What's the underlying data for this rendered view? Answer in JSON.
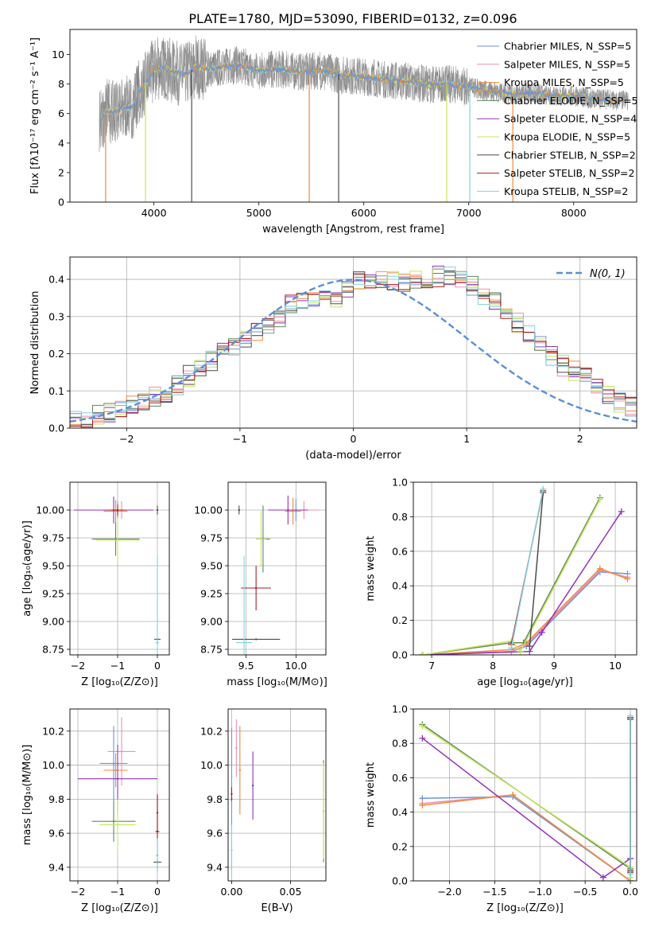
{
  "series_colors": [
    "#6b94d8",
    "#ef8fb3",
    "#ee8a3d",
    "#5e8a5e",
    "#9332b8",
    "#c7e65a",
    "#4d4d4d",
    "#a81e1e",
    "#83d3dc"
  ],
  "chart_data": [
    {
      "id": "spectrum",
      "type": "line",
      "title": "PLATE=1780, MJD=53090, FIBERID=0132, z=0.096",
      "xlabel": "wavelength [Angstrom, rest frame]",
      "ylabel": "Flux [fλ10⁻¹⁷ erg cm⁻² s⁻¹ A⁻¹]",
      "xlim": [
        3200,
        8600
      ],
      "ylim": [
        0,
        11.7
      ],
      "xticks": [
        4000,
        5000,
        6000,
        7000,
        8000
      ],
      "yticks": [
        0,
        2,
        4,
        6,
        8,
        10
      ],
      "grid": false,
      "legend_position": "top-right",
      "legend": [
        "Chabrier MILES, N_SSP=5",
        "Salpeter MILES, N_SSP=5",
        "Kroupa MILES, N_SSP=5",
        "Chabrier ELODIE, N_SSP=5",
        "Salpeter ELODIE, N_SSP=4",
        "Kroupa ELODIE, N_SSP=5",
        "Chabrier STELIB, N_SSP=2",
        "Salpeter STELIB, N_SSP=2",
        "Kroupa STELIB, N_SSP=2"
      ],
      "model_continuum": {
        "x": [
          3500,
          3550,
          3600,
          3700,
          3800,
          3850,
          3900,
          3950,
          4000,
          4100,
          4200,
          4300,
          4400,
          4500,
          4600,
          4800,
          5000,
          5200,
          5400,
          5600,
          5800,
          6000,
          6200,
          6400,
          6600,
          6800,
          7000,
          7200,
          7400,
          7600,
          7800,
          8000,
          8200,
          8400
        ],
        "y": [
          5.6,
          6.2,
          6.1,
          6.3,
          6.5,
          7.5,
          7.8,
          8.4,
          9.0,
          9.1,
          8.8,
          8.6,
          9.2,
          9.0,
          9.1,
          9.3,
          8.9,
          9.0,
          8.8,
          8.9,
          8.6,
          8.5,
          8.3,
          8.2,
          8.0,
          8.0,
          7.8,
          7.5,
          7.3,
          7.4,
          7.2,
          7.2,
          7.0,
          6.9
        ]
      }
    },
    {
      "id": "residuals",
      "type": "histogram",
      "xlabel": "(data-model)/error",
      "ylabel": "Normed distribution",
      "xlim": [
        -2.5,
        2.5
      ],
      "ylim": [
        0,
        0.46
      ],
      "xticks": [
        -2,
        -1,
        0,
        1,
        2
      ],
      "yticks": [
        0.0,
        0.1,
        0.2,
        0.3,
        0.4
      ],
      "grid": true,
      "legend_position": "top-right",
      "legend": [
        "N(0, 1)"
      ],
      "normal_reference": {
        "mean": 0,
        "sigma": 1
      },
      "bin_width": 0.1,
      "series": [
        {
          "values": [
            0.02,
            0.02,
            0.03,
            0.04,
            0.05,
            0.06,
            0.07,
            0.08,
            0.1,
            0.12,
            0.14,
            0.16,
            0.18,
            0.2,
            0.22,
            0.24,
            0.26,
            0.28,
            0.3,
            0.33,
            0.34,
            0.35,
            0.35,
            0.35,
            0.38,
            0.4,
            0.39,
            0.4,
            0.39,
            0.39,
            0.4,
            0.4,
            0.41,
            0.41,
            0.4,
            0.38,
            0.35,
            0.34,
            0.31,
            0.28,
            0.26,
            0.22,
            0.2,
            0.17,
            0.15,
            0.13,
            0.11,
            0.09,
            0.07,
            0.06
          ]
        }
      ]
    },
    {
      "id": "age_vs_Z",
      "type": "errorbar",
      "xlabel": "Z [log₁₀(Z/Z⊙)]",
      "ylabel": "age  [log₁₀(age/yr)]",
      "xlim": [
        -2.2,
        0.3
      ],
      "ylim": [
        8.7,
        10.25
      ],
      "xticks": [
        -2,
        -1,
        0
      ],
      "yticks": [
        8.75,
        9.0,
        9.25,
        9.5,
        9.75,
        10.0
      ],
      "grid": true,
      "points": [
        {
          "s": 0,
          "x": -1.0,
          "y": 10.0,
          "xerr": 0.3,
          "yerr": 0.08
        },
        {
          "s": 1,
          "x": -0.9,
          "y": 10.0,
          "xerr": 0.35,
          "yerr": 0.08
        },
        {
          "s": 2,
          "x": -1.05,
          "y": 9.99,
          "xerr": 0.3,
          "yerr": 0.1
        },
        {
          "s": 3,
          "x": -1.05,
          "y": 9.74,
          "xerr": 0.6,
          "yerr": 0.15
        },
        {
          "s": 4,
          "x": -1.1,
          "y": 10.0,
          "xerr": 1.0,
          "yerr": 0.12
        },
        {
          "s": 5,
          "x": -1.0,
          "y": 9.73,
          "xerr": 0.55,
          "yerr": 0.2
        },
        {
          "s": 6,
          "x": 0.0,
          "y": 8.84,
          "xerr": 0.08,
          "yerr": 0.0
        },
        {
          "s": 6,
          "x": 0.0,
          "y": 10.0,
          "xerr": 0.0,
          "yerr": 0.04
        },
        {
          "s": 7,
          "x": -1.0,
          "y": 10.0,
          "xerr": 0.2,
          "yerr": 0.05
        },
        {
          "s": 8,
          "x": 0.0,
          "y": 8.81,
          "xerr": 0.04,
          "yerr": 0.78
        }
      ]
    },
    {
      "id": "age_vs_mass",
      "type": "errorbar",
      "xlabel": "mass [log₁₀(M/M⊙)]",
      "ylabel": "",
      "xlim": [
        9.32,
        10.3
      ],
      "ylim": [
        8.7,
        10.25
      ],
      "xticks": [
        9.5,
        10.0
      ],
      "yticks": [
        8.75,
        9.0,
        9.25,
        9.5,
        9.75,
        10.0
      ],
      "grid": true,
      "points": [
        {
          "s": 0,
          "x": 10.0,
          "y": 10.0,
          "xerr": 0.1,
          "yerr": 0.1
        },
        {
          "s": 1,
          "x": 10.08,
          "y": 10.0,
          "xerr": 0.15,
          "yerr": 0.08
        },
        {
          "s": 2,
          "x": 9.97,
          "y": 9.99,
          "xerr": 0.08,
          "yerr": 0.12
        },
        {
          "s": 3,
          "x": 9.67,
          "y": 9.74,
          "xerr": 0.07,
          "yerr": 0.3
        },
        {
          "s": 4,
          "x": 9.92,
          "y": 10.0,
          "xerr": 0.2,
          "yerr": 0.13
        },
        {
          "s": 5,
          "x": 9.65,
          "y": 9.74,
          "xerr": 0.05,
          "yerr": 0.25
        },
        {
          "s": 6,
          "x": 9.43,
          "y": 10.0,
          "xerr": 0.0,
          "yerr": 0.04
        },
        {
          "s": 6,
          "x": 9.6,
          "y": 8.84,
          "xerr": 0.24,
          "yerr": 0.0
        },
        {
          "s": 7,
          "x": 9.6,
          "y": 9.3,
          "xerr": 0.15,
          "yerr": 0.2
        },
        {
          "s": 8,
          "x": 9.48,
          "y": 8.81,
          "xerr": 0.08,
          "yerr": 0.78
        }
      ]
    },
    {
      "id": "weight_vs_age",
      "type": "line",
      "xlabel": "age  [log₁₀(age/yr)]",
      "ylabel": "mass weight",
      "xlim": [
        6.7,
        10.35
      ],
      "ylim": [
        0,
        1.0
      ],
      "xticks": [
        7,
        8,
        9,
        10
      ],
      "yticks": [
        0.0,
        0.2,
        0.4,
        0.6,
        0.8,
        1.0
      ],
      "grid": true,
      "series": [
        {
          "s": 0,
          "x": [
            6.85,
            8.3,
            8.55,
            9.75,
            10.2
          ],
          "y": [
            0.0,
            0.02,
            0.05,
            0.48,
            0.47
          ]
        },
        {
          "s": 1,
          "x": [
            6.85,
            8.3,
            8.55,
            9.75,
            10.2
          ],
          "y": [
            0.0,
            0.02,
            0.06,
            0.49,
            0.45
          ]
        },
        {
          "s": 2,
          "x": [
            6.85,
            8.3,
            8.55,
            9.75,
            10.2
          ],
          "y": [
            0.0,
            0.03,
            0.07,
            0.5,
            0.44
          ]
        },
        {
          "s": 3,
          "x": [
            6.85,
            8.3,
            8.5,
            9.75
          ],
          "y": [
            0.0,
            0.07,
            0.07,
            0.91
          ]
        },
        {
          "s": 4,
          "x": [
            6.85,
            8.6,
            8.8,
            10.1
          ],
          "y": [
            0.0,
            0.02,
            0.13,
            0.83
          ]
        },
        {
          "s": 5,
          "x": [
            6.85,
            8.3,
            8.45,
            9.75
          ],
          "y": [
            0.0,
            0.08,
            0.02,
            0.9
          ]
        },
        {
          "s": 6,
          "x": [
            8.6,
            8.82
          ],
          "y": [
            0.05,
            0.94
          ]
        },
        {
          "s": 7,
          "x": [
            8.3,
            8.82
          ],
          "y": [
            0.06,
            0.95
          ]
        },
        {
          "s": 8,
          "x": [
            8.3,
            8.82
          ],
          "y": [
            0.04,
            0.96
          ]
        }
      ]
    },
    {
      "id": "mass_vs_Z",
      "type": "errorbar",
      "xlabel": "Z [log₁₀(Z/Z⊙)]",
      "ylabel": "mass [log₁₀(M/M⊙)]",
      "xlim": [
        -2.2,
        0.3
      ],
      "ylim": [
        9.32,
        10.33
      ],
      "xticks": [
        -2,
        -1,
        0
      ],
      "yticks": [
        9.4,
        9.6,
        9.8,
        10.0,
        10.2
      ],
      "grid": true,
      "points": [
        {
          "s": 0,
          "x": -1.1,
          "y": 10.01,
          "xerr": 0.35,
          "yerr": 0.22
        },
        {
          "s": 1,
          "x": -0.9,
          "y": 10.08,
          "xerr": 0.35,
          "yerr": 0.2
        },
        {
          "s": 2,
          "x": -1.05,
          "y": 9.97,
          "xerr": 0.3,
          "yerr": 0.1
        },
        {
          "s": 3,
          "x": -1.1,
          "y": 9.67,
          "xerr": 0.55,
          "yerr": 0.12
        },
        {
          "s": 4,
          "x": -1.0,
          "y": 9.92,
          "xerr": 1.0,
          "yerr": 0.2
        },
        {
          "s": 5,
          "x": -1.0,
          "y": 9.65,
          "xerr": 0.45,
          "yerr": 0.15
        },
        {
          "s": 6,
          "x": 0.0,
          "y": 9.43,
          "xerr": 0.1,
          "yerr": 0.0
        },
        {
          "s": 6,
          "x": 0.0,
          "y": 9.72,
          "xerr": 0.0,
          "yerr": 0.1
        },
        {
          "s": 7,
          "x": 0.0,
          "y": 9.61,
          "xerr": 0.05,
          "yerr": 0.22
        },
        {
          "s": 8,
          "x": 0.0,
          "y": 9.47,
          "xerr": 0.04,
          "yerr": 0.1
        }
      ]
    },
    {
      "id": "mass_vs_ebv",
      "type": "errorbar",
      "xlabel": "E(B-V)",
      "ylabel": "",
      "xlim": [
        -0.003,
        0.08
      ],
      "ylim": [
        9.32,
        10.33
      ],
      "xticks": [
        0.0,
        0.05
      ],
      "yticks": [
        9.4,
        9.6,
        9.8,
        10.0,
        10.2
      ],
      "grid": true,
      "points": [
        {
          "s": 0,
          "x": 0.0,
          "y": 9.8,
          "xerr": 0.0,
          "yerr": 0.42
        },
        {
          "s": 1,
          "x": 0.004,
          "y": 10.1,
          "xerr": 0.0,
          "yerr": 0.17
        },
        {
          "s": 2,
          "x": 0.007,
          "y": 9.97,
          "xerr": 0.0,
          "yerr": 0.26
        },
        {
          "s": 3,
          "x": 0.078,
          "y": 9.73,
          "xerr": 0.0,
          "yerr": 0.3
        },
        {
          "s": 4,
          "x": 0.018,
          "y": 9.88,
          "xerr": 0.0,
          "yerr": 0.2
        },
        {
          "s": 5,
          "x": 0.078,
          "y": 9.73,
          "xerr": 0.0,
          "yerr": 0.28
        },
        {
          "s": 7,
          "x": 0.0,
          "y": 9.83,
          "xerr": 0.0,
          "yerr": 0.04
        },
        {
          "s": 8,
          "x": 0.0,
          "y": 9.5,
          "xerr": 0.0,
          "yerr": 0.15
        }
      ]
    },
    {
      "id": "weight_vs_Z",
      "type": "line",
      "xlabel": "Z [log₁₀(Z/Z⊙)]",
      "ylabel": "mass weight",
      "xlim": [
        -2.4,
        0.07
      ],
      "ylim": [
        0,
        1.0
      ],
      "xticks": [
        -2.0,
        -1.5,
        -1.0,
        -0.5,
        0.0
      ],
      "yticks": [
        0.0,
        0.2,
        0.4,
        0.6,
        0.8,
        1.0
      ],
      "grid": true,
      "series": [
        {
          "s": 0,
          "x": [
            -2.3,
            -1.3,
            0.0
          ],
          "y": [
            0.48,
            0.49,
            0.0
          ]
        },
        {
          "s": 1,
          "x": [
            -2.3,
            -1.3,
            0.0
          ],
          "y": [
            0.45,
            0.5,
            0.0
          ]
        },
        {
          "s": 2,
          "x": [
            -2.3,
            -1.3,
            0.0
          ],
          "y": [
            0.44,
            0.5,
            0.0
          ]
        },
        {
          "s": 3,
          "x": [
            -2.3,
            0.0,
            0.0
          ],
          "y": [
            0.91,
            0.07,
            0.0
          ]
        },
        {
          "s": 4,
          "x": [
            -2.3,
            -0.3,
            0.0
          ],
          "y": [
            0.83,
            0.02,
            0.13
          ]
        },
        {
          "s": 5,
          "x": [
            -2.3,
            0.0,
            0.0
          ],
          "y": [
            0.9,
            0.08,
            0.02
          ]
        },
        {
          "s": 6,
          "x": [
            0.0,
            0.0
          ],
          "y": [
            0.05,
            0.94
          ]
        },
        {
          "s": 7,
          "x": [
            0.0,
            0.0
          ],
          "y": [
            0.06,
            0.95
          ]
        },
        {
          "s": 8,
          "x": [
            0.0,
            0.0
          ],
          "y": [
            0.04,
            0.96
          ]
        }
      ]
    }
  ]
}
